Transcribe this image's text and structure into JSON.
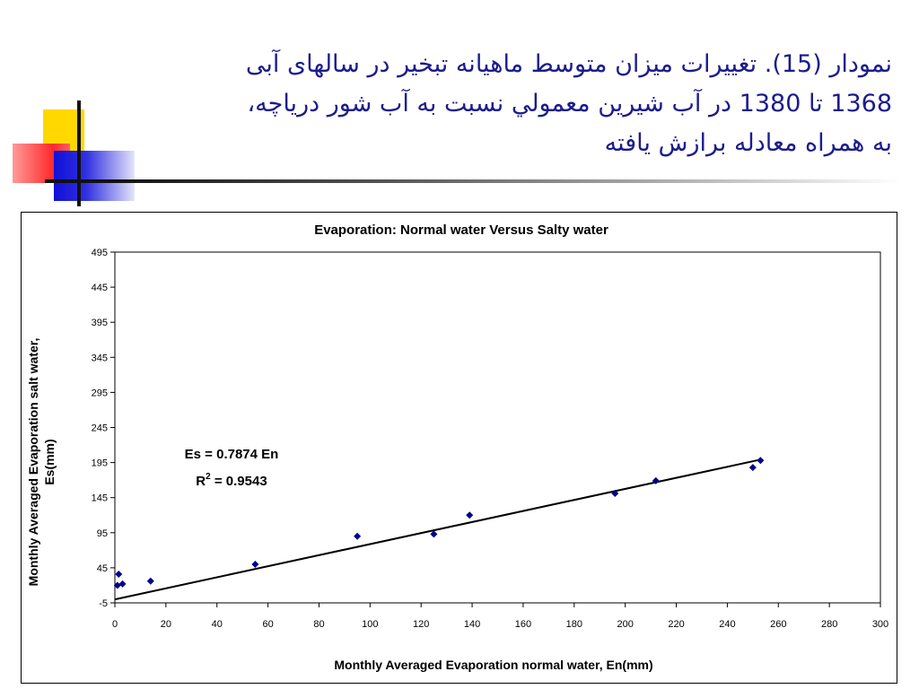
{
  "slide": {
    "title_lines": [
      "نمودار (15).  تغييرات ميزان متوسط ماهيانه تبخير در سالهای آبی",
      "1368 تا 1380 در آب شيرين معمولي نسبت به آب شور درياچه،",
      "به همراه معادله برازش يافته"
    ]
  },
  "chart_data": {
    "type": "scatter",
    "title": "Evaporation:  Normal water Versus Salty water",
    "xlabel": "Monthly Averaged Evaporation normal water, En(mm)",
    "ylabel_lines": [
      "Monthly Averaged Evaporation salt water,",
      "Es(mm)"
    ],
    "xlim": [
      0,
      300
    ],
    "ylim": [
      -5,
      495
    ],
    "x_ticks": [
      0,
      20,
      40,
      60,
      80,
      100,
      120,
      140,
      160,
      180,
      200,
      220,
      240,
      260,
      280,
      300
    ],
    "y_ticks": [
      -5,
      45,
      95,
      145,
      195,
      245,
      295,
      345,
      395,
      445,
      495
    ],
    "grid": false,
    "legend": "none",
    "point_color": "#00008b",
    "series": [
      {
        "x": [
          1,
          1.5,
          3,
          14,
          55,
          95,
          125,
          139,
          196,
          212,
          250,
          253
        ],
        "y": [
          20,
          36,
          22,
          26,
          50,
          90,
          93,
          120,
          151,
          169,
          188,
          198
        ]
      }
    ],
    "trendline": {
      "slope": 0.7874,
      "x_range": [
        0,
        253
      ]
    },
    "annotation": {
      "equation": "Es = 0.7874 En",
      "r2_prefix": "R",
      "r2_sup": "2",
      "r2_rest": " = 0.9543"
    }
  }
}
